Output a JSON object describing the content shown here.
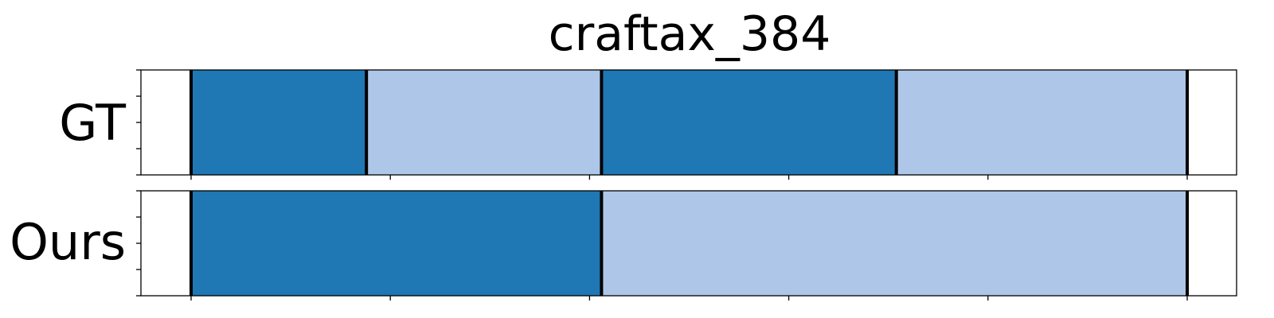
{
  "chart_data": {
    "type": "bar",
    "title": "craftax_384",
    "xlim": [
      0,
      137
    ],
    "x_ticks": [
      0,
      25,
      50,
      75,
      100,
      125
    ],
    "y_ticks": [
      0,
      0.25,
      0.5,
      0.75,
      1.0
    ],
    "grid": false,
    "legend": "none",
    "colors": {
      "dark": "#1f77b4",
      "light": "#aec7e8",
      "boundary": "#000000"
    },
    "rows": [
      {
        "label": "GT",
        "segments": [
          {
            "start": 0,
            "end": 22,
            "color": "dark"
          },
          {
            "start": 22,
            "end": 51.5,
            "color": "light"
          },
          {
            "start": 51.5,
            "end": 88.5,
            "color": "dark"
          },
          {
            "start": 88.5,
            "end": 125,
            "color": "light"
          }
        ],
        "boundaries": [
          0,
          22,
          51.5,
          88.5,
          125
        ]
      },
      {
        "label": "Ours",
        "segments": [
          {
            "start": 0,
            "end": 51.5,
            "color": "dark"
          },
          {
            "start": 51.5,
            "end": 125,
            "color": "light"
          }
        ],
        "boundaries": [
          0,
          51.5,
          125
        ]
      }
    ]
  }
}
